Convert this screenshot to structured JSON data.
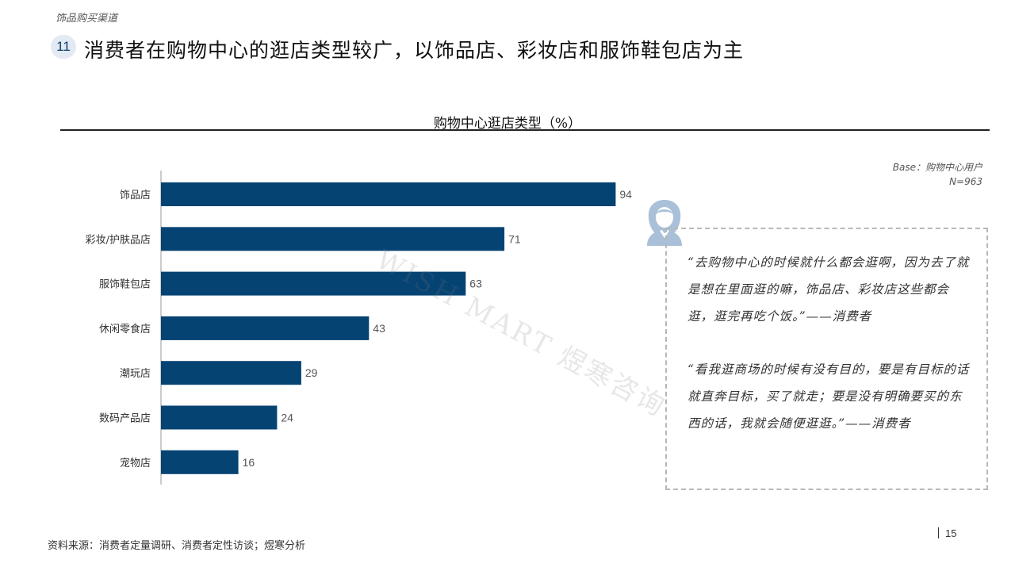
{
  "header": {
    "section": "饰品购买渠道",
    "page_badge": "11",
    "headline": "消费者在购物中心的逛店类型较广，以饰品店、彩妆店和服饰鞋包店为主"
  },
  "base_note": {
    "line1": "Base：购物中心用户",
    "line2": "N=963"
  },
  "watermark": "WISH MART 煜寒咨询",
  "quotes": [
    "“去购物中心的时候就什么都会逛啊，因为去了就是想在里面逛的嘛，饰品店、彩妆店这些都会逛，逛完再吃个饭。”——消费者",
    "“看我逛商场的时候有没有目的，要是有目标的话就直奔目标，买了就走；要是没有明确要买的东西的话，我就会随便逛逛。”——消费者"
  ],
  "footer": {
    "source": "资料来源：消费者定量调研、消费者定性访谈；煜寒分析",
    "page": "15"
  },
  "colors": {
    "bar": "#054373",
    "accent": "#0a3d6b",
    "avatar": "#a9c0d8"
  },
  "chart_data": {
    "type": "bar",
    "orientation": "horizontal",
    "title": "购物中心逛店类型（%）",
    "categories": [
      "饰品店",
      "彩妆/护肤品店",
      "服饰鞋包店",
      "休闲零食店",
      "潮玩店",
      "数码产品店",
      "宠物店"
    ],
    "values": [
      94,
      71,
      63,
      43,
      29,
      24,
      16
    ],
    "xlim": [
      0,
      100
    ],
    "data_labels": true,
    "grid": false
  }
}
